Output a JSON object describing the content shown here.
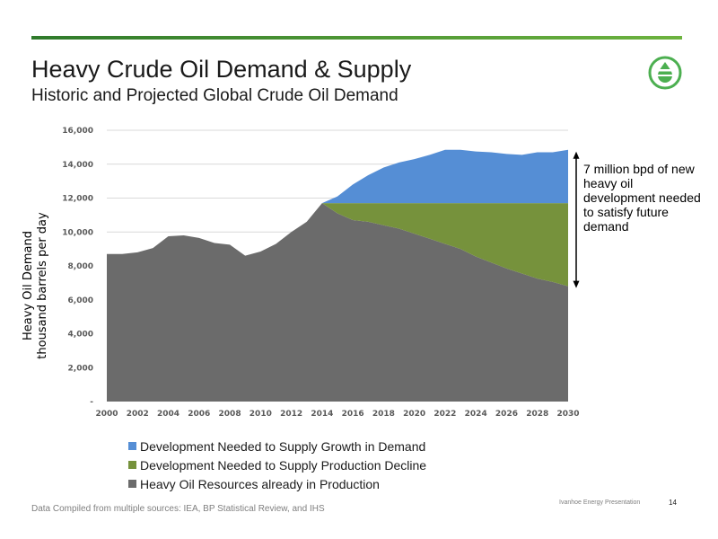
{
  "slide": {
    "title": "Heavy Crude Oil Demand & Supply",
    "subtitle": "Historic and Projected Global Crude Oil Demand",
    "annotation": "7 million bpd of new heavy oil development needed to satisfy future demand",
    "source": "Data Compiled from multiple sources:  IEA,  BP Statistical Review, and IHS",
    "footer_label": "Ivanhoe Energy Presentation",
    "page_number": "14",
    "logo_icon": "ivanhoe-drop-logo-icon",
    "accent_color": "#4caf50"
  },
  "chart_data": {
    "type": "area",
    "stacked": true,
    "ylabel_line1": "Heavy Oil Demand",
    "ylabel_line2": "thousand barrels per day",
    "ylim": [
      0,
      16000
    ],
    "y_ticks": [
      0,
      2000,
      4000,
      6000,
      8000,
      10000,
      12000,
      14000,
      16000
    ],
    "y_tick_labels": [
      "-",
      "2,000",
      "4,000",
      "6,000",
      "8,000",
      "10,000",
      "12,000",
      "14,000",
      "16,000"
    ],
    "x_ticks": [
      2000,
      2002,
      2004,
      2006,
      2008,
      2010,
      2012,
      2014,
      2016,
      2018,
      2020,
      2022,
      2024,
      2026,
      2028,
      2030
    ],
    "x": [
      2000,
      2001,
      2002,
      2003,
      2004,
      2005,
      2006,
      2007,
      2008,
      2009,
      2010,
      2011,
      2012,
      2013,
      2014,
      2015,
      2016,
      2017,
      2018,
      2019,
      2020,
      2021,
      2022,
      2023,
      2024,
      2025,
      2026,
      2027,
      2028,
      2029,
      2030
    ],
    "grid": true,
    "legend_position": "bottom",
    "series": [
      {
        "name": "Heavy Oil Resources already in Production",
        "color": "#6b6b6b",
        "values": [
          8700,
          8700,
          8800,
          9050,
          9750,
          9800,
          9650,
          9350,
          9250,
          8600,
          8850,
          9300,
          10000,
          10600,
          11700,
          11100,
          10700,
          10600,
          10400,
          10200,
          9900,
          9600,
          9300,
          9000,
          8550,
          8200,
          7850,
          7550,
          7250,
          7050,
          6800
        ]
      },
      {
        "name": "Development Needed to Supply Production Decline",
        "color": "#76923c",
        "values": [
          0,
          0,
          0,
          0,
          0,
          0,
          0,
          0,
          0,
          0,
          0,
          0,
          0,
          0,
          0,
          600,
          1000,
          1100,
          1300,
          1500,
          1800,
          2100,
          2400,
          2700,
          3150,
          3500,
          3850,
          4150,
          4450,
          4650,
          4900
        ]
      },
      {
        "name": "Development Needed to Supply Growth in Demand",
        "color": "#558ed5",
        "values": [
          0,
          0,
          0,
          0,
          0,
          0,
          0,
          0,
          0,
          0,
          0,
          0,
          0,
          0,
          0,
          400,
          1100,
          1650,
          2100,
          2400,
          2600,
          2850,
          3150,
          3150,
          3050,
          3000,
          2900,
          2850,
          3000,
          3000,
          3150
        ]
      }
    ],
    "legend_order": [
      2,
      1,
      0
    ]
  }
}
